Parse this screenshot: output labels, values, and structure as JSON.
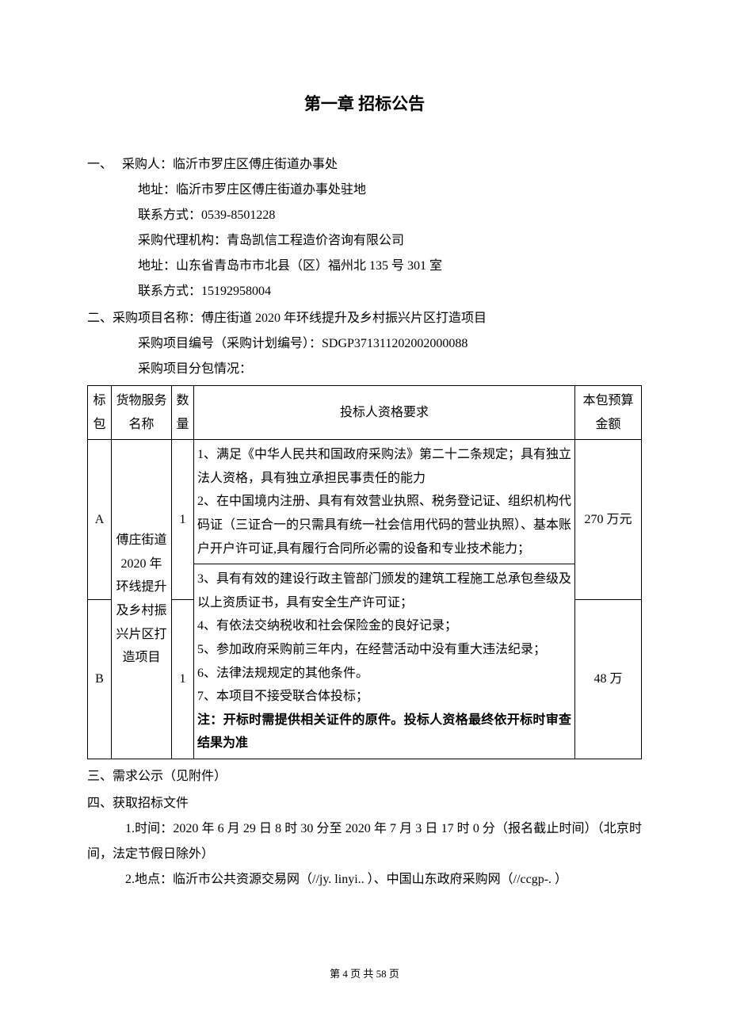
{
  "chapter_title": "第一章  招标公告",
  "section1": {
    "label": "一、",
    "purchaser": "采购人：临沂市罗庄区傅庄街道办事处",
    "address": "地址：临沂市罗庄区傅庄街道办事处驻地",
    "contact": "联系方式：0539-8501228",
    "agency": "采购代理机构：青岛凯信工程造价咨询有限公司",
    "agency_address": "地址：山东省青岛市市北县（区）福州北 135 号 301 室",
    "agency_contact": "联系方式：15192958004"
  },
  "section2": {
    "label": "二、采购项目名称：傅庄街道 2020 年环线提升及乡村振兴片区打造项目",
    "project_no": "采购项目编号（采购计划编号）：SDGP371311202002000088",
    "subpackage": "采购项目分包情况："
  },
  "table": {
    "headers": {
      "biaobao": "标包",
      "name": "货物服务名称",
      "qty": "数量",
      "requirements": "投标人资格要求",
      "budget": "本包预算金额"
    },
    "project_name": "傅庄街道2020 年环线提升及乡村振兴片区打造项目",
    "req_part1": "1、满足《中华人民共和国政府采购法》第二十二条规定；具有独立法人资格，具有独立承担民事责任的能力\n2、在中国境内注册、具有有效营业执照、税务登记证、组织机构代码证（三证合一的只需具有统一社会信用代码的营业执照）、基本账户开户许可证,具有履行合同所必需的设备和专业技术能力；",
    "req_part2_text": "3、具有有效的建设行政主管部门颁发的建筑工程施工总承包叁级及以上资质证书，具有安全生产许可证；\n4、有依法交纳税收和社会保险金的良好记录；\n5、参加政府采购前三年内，在经营活动中没有重大违法纪录；\n6、法律法规规定的其他条件。\n7、本项目不接受联合体投标；",
    "req_part2_bold": "注：开标时需提供相关证件的原件。投标人资格最终依开标时审查结果为准",
    "rows": [
      {
        "biaobao": "A",
        "qty": "1",
        "budget": "270 万元"
      },
      {
        "biaobao": "B",
        "qty": "1",
        "budget": "48 万"
      }
    ]
  },
  "section3": "三、需求公示（见附件）",
  "section4": {
    "label": "四、获取招标文件",
    "item1": "1.时间：2020 年 6 月 29 日 8 时 30 分至 2020 年 7 月 3 日 17 时 0 分（报名截止时间）（北京时间，法定节假日除外）",
    "item2": "2.地点：临沂市公共资源交易网（//jy. linyi..                          ）、中国山东政府采购网（//ccgp-.                             ）"
  },
  "footer": "第 4 页 共 58 页"
}
